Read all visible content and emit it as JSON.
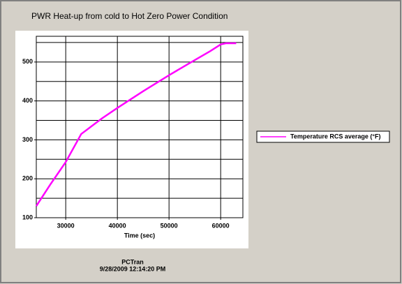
{
  "chart_data": {
    "type": "line",
    "title": "PWR Heat-up from cold to Hot Zero Power Condition",
    "x_label": "Time (sec)",
    "footer": [
      "PCTran",
      "9/28/2009 12:14:20 PM"
    ],
    "x": [
      24300,
      27000,
      30000,
      33000,
      35000,
      37000,
      40000,
      45000,
      50000,
      55000,
      58000,
      60000,
      61000,
      63000
    ],
    "series": [
      {
        "name": "Temperature RCS average (°F)",
        "color": "#ff00ff",
        "values": [
          130,
          185,
          243,
          315,
          335,
          355,
          382,
          425,
          466,
          505,
          528,
          545,
          548,
          548
        ]
      }
    ],
    "xlim": [
      24300,
      64300
    ],
    "xticks": [
      30000,
      40000,
      50000,
      60000
    ],
    "ylim": [
      100,
      566
    ],
    "yticks": [
      100,
      200,
      300,
      400,
      500
    ],
    "grid": true,
    "minor_grid": true,
    "legend": "right"
  }
}
